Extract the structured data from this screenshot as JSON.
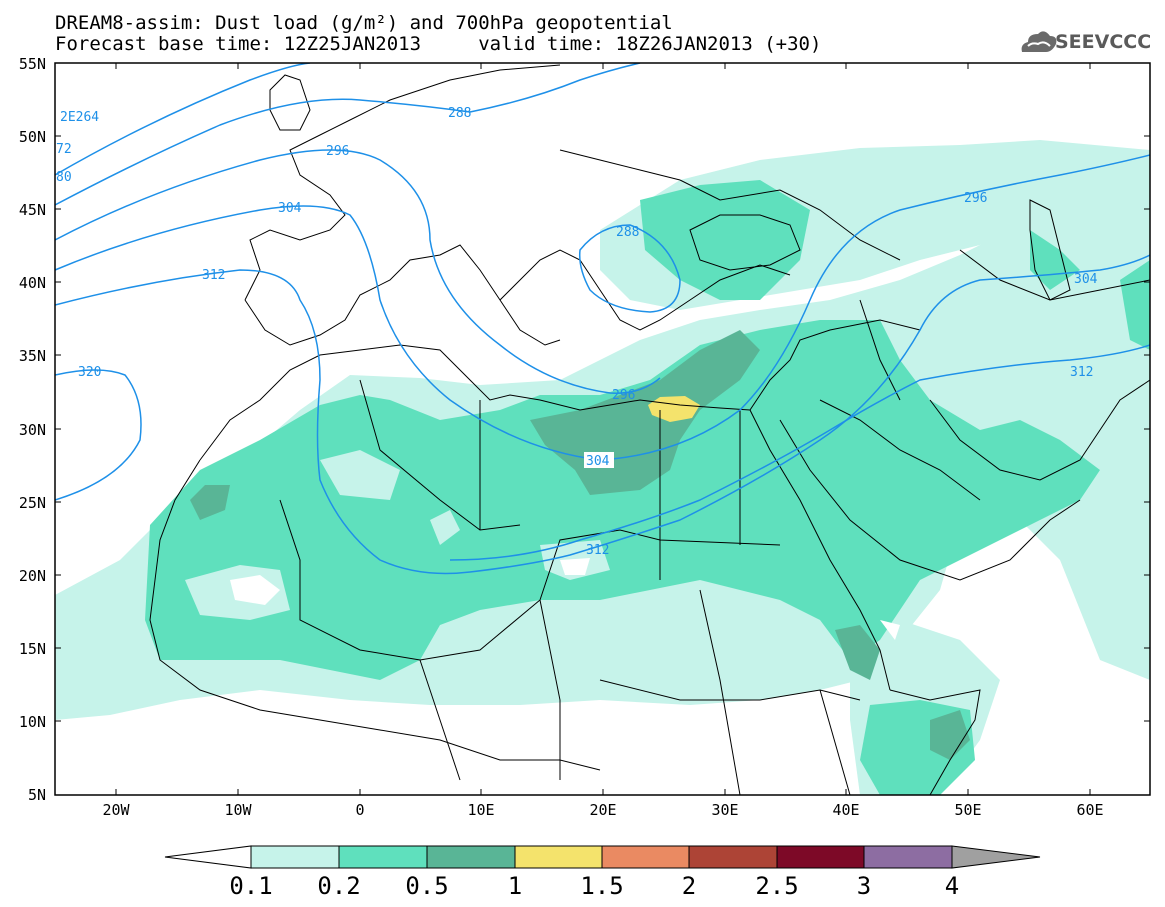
{
  "title": {
    "line1": "DREAM8-assim: Dust load (g/m²) and 700hPa geopotential",
    "line2": "Forecast base time: 12Z25JAN2013     valid time: 18Z26JAN2013 (+30)"
  },
  "logo": {
    "icon": "cloud-logo-icon",
    "text": "SEEVCCC"
  },
  "axes": {
    "lat_labels": [
      "55N",
      "50N",
      "45N",
      "40N",
      "35N",
      "30N",
      "25N",
      "20N",
      "15N",
      "10N",
      "5N"
    ],
    "lon_labels": [
      "20W",
      "10W",
      "0",
      "10E",
      "20E",
      "30E",
      "40E",
      "50E",
      "60E"
    ]
  },
  "contours": {
    "labels": [
      "288",
      "296",
      "304",
      "312",
      "320",
      "296",
      "304",
      "312",
      "288",
      "296",
      "304",
      "312",
      "2E264",
      "72",
      "80"
    ]
  },
  "colorbar": {
    "labels": [
      "0.1",
      "0.2",
      "0.5",
      "1",
      "1.5",
      "2",
      "2.5",
      "3",
      "4"
    ],
    "colors": [
      "#c6f3ea",
      "#5fe0bd",
      "#59b596",
      "#f4e36c",
      "#ea8a62",
      "#ad4436",
      "#7d0927",
      "#8d6da2",
      "#a0a0a0"
    ]
  },
  "colors": {
    "contour": "#1e90e8",
    "border": "#000000"
  }
}
